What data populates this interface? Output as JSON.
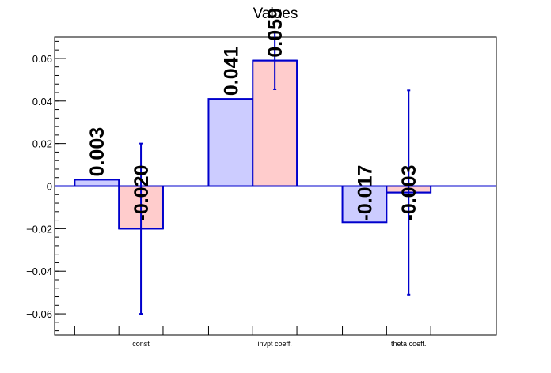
{
  "chart_data": {
    "type": "bar",
    "title": "Values",
    "xlabel": "",
    "ylabel": "",
    "ylim": [
      -0.07,
      0.07
    ],
    "yticks": [
      -0.06,
      -0.04,
      -0.02,
      0,
      0.02,
      0.04,
      0.06
    ],
    "ytick_labels": [
      "−0.06",
      "−0.04",
      "−0.02",
      "0",
      "0.02",
      "0.04",
      "0.06"
    ],
    "categories": [
      "const",
      "invpt coeff.",
      "theta coeff."
    ],
    "series": [
      {
        "values": [
          0.003,
          0.041,
          -0.017
        ],
        "labels": [
          "0.003",
          "0.041",
          "-0.017"
        ],
        "fill": "#ccccff",
        "stroke": "#0000cc"
      },
      {
        "values": [
          -0.02,
          0.059,
          -0.003
        ],
        "labels": [
          "-0.020",
          "0.059",
          "-0.003"
        ],
        "errors": [
          0.04,
          0.0135,
          0.048
        ],
        "fill": "#ffcccc",
        "stroke": "#0000cc"
      }
    ],
    "grid": false,
    "legend": "none"
  }
}
